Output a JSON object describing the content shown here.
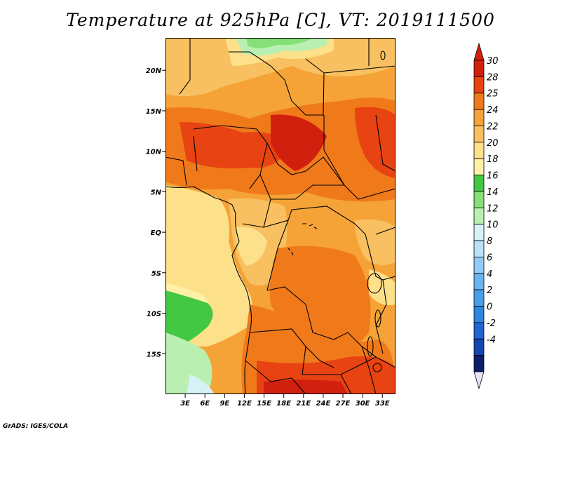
{
  "title": "Temperature at 925hPa [C], VT: 2019111500",
  "credit": "GrADS: IGES/COLA",
  "map": {
    "lon_range": [
      0,
      35
    ],
    "lat_range": [
      -20,
      24
    ],
    "lat_ticks": [
      {
        "value": 20,
        "label": "20N"
      },
      {
        "value": 15,
        "label": "15N"
      },
      {
        "value": 10,
        "label": "10N"
      },
      {
        "value": 5,
        "label": "5N"
      },
      {
        "value": 0,
        "label": "EQ"
      },
      {
        "value": -5,
        "label": "5S"
      },
      {
        "value": -10,
        "label": "10S"
      },
      {
        "value": -15,
        "label": "15S"
      }
    ],
    "lon_ticks": [
      {
        "value": 3,
        "label": "3E"
      },
      {
        "value": 6,
        "label": "6E"
      },
      {
        "value": 9,
        "label": "9E"
      },
      {
        "value": 12,
        "label": "12E"
      },
      {
        "value": 15,
        "label": "15E"
      },
      {
        "value": 18,
        "label": "18E"
      },
      {
        "value": 21,
        "label": "21E"
      },
      {
        "value": 24,
        "label": "24E"
      },
      {
        "value": 27,
        "label": "27E"
      },
      {
        "value": 30,
        "label": "30E"
      },
      {
        "value": 33,
        "label": "33E"
      }
    ]
  },
  "colorbar": {
    "levels": [
      "-4",
      "-2",
      "0",
      "2",
      "4",
      "6",
      "8",
      "10",
      "12",
      "14",
      "16",
      "18",
      "20",
      "22",
      "24",
      "25",
      "28",
      "30"
    ],
    "colors": [
      "#0c1d6a",
      "#1545b0",
      "#2165d0",
      "#2e86dd",
      "#4a9ee8",
      "#6ab4f0",
      "#94cbf6",
      "#b9e1fa",
      "#d7f2f6",
      "#b9f0b2",
      "#86e078",
      "#43c843",
      "#fff0a8",
      "#fde08a",
      "#f8c060",
      "#f5a337",
      "#f07a1a",
      "#e84312",
      "#d2200f"
    ],
    "under_color": "#e6e4f6",
    "over_color": "#d2200f"
  }
}
